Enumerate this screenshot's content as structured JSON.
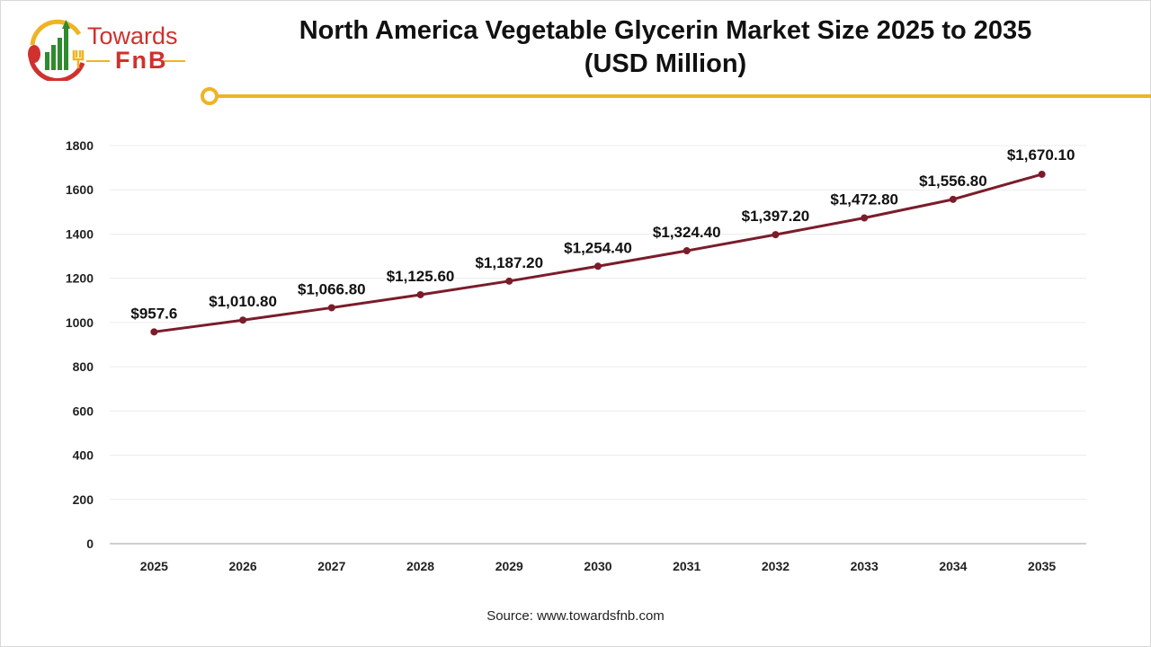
{
  "brand": {
    "line1": "Towards",
    "line2": "FnB"
  },
  "colors": {
    "line": "#7b1c2a",
    "accent": "#f0b323",
    "brand_red": "#d0312d",
    "brand_green": "#2e8b2e"
  },
  "chart_data": {
    "type": "line",
    "title": "North America Vegetable Glycerin Market Size 2025 to 2035 (USD Million)",
    "title_lines": [
      "North America Vegetable Glycerin Market Size 2025 to 2035",
      "(USD Million)"
    ],
    "categories": [
      "2025",
      "2026",
      "2027",
      "2028",
      "2029",
      "2030",
      "2031",
      "2032",
      "2033",
      "2034",
      "2035"
    ],
    "values": [
      957.6,
      1010.8,
      1066.8,
      1125.6,
      1187.2,
      1254.4,
      1324.4,
      1397.2,
      1472.8,
      1556.8,
      1670.1
    ],
    "data_labels": [
      "$957.6",
      "$1,010.80",
      "$1,066.80",
      "$1,125.60",
      "$1,187.20",
      "$1,254.40",
      "$1,324.40",
      "$1,397.20",
      "$1,472.80",
      "$1,556.80",
      "$1,670.10"
    ],
    "yticks": [
      0,
      200,
      400,
      600,
      800,
      1000,
      1200,
      1400,
      1600,
      1800
    ],
    "ylim": [
      0,
      1800
    ],
    "grid": true,
    "xlabel": "",
    "ylabel": ""
  },
  "source": "Source: www.towardsfnb.com"
}
